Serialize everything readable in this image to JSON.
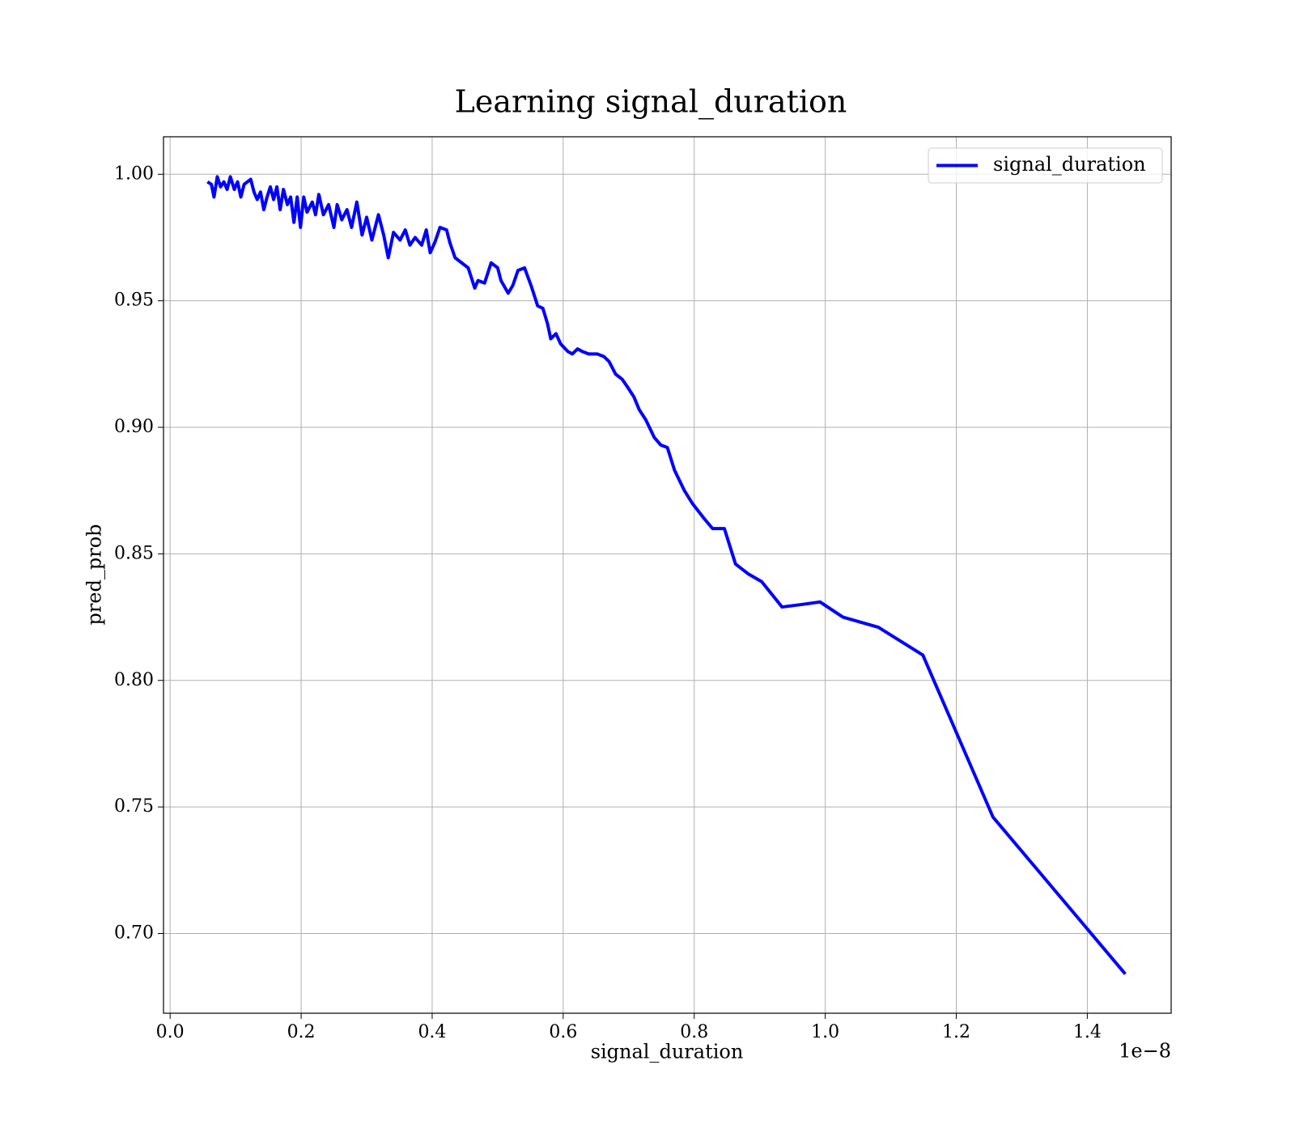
{
  "chart_data": {
    "type": "line",
    "title": "Learning signal_duration",
    "x_label": "signal_duration",
    "y_label": "pred_prob",
    "x_offset_label": "1e−8",
    "x": [
      0.057,
      0.063,
      0.067,
      0.072,
      0.077,
      0.082,
      0.087,
      0.092,
      0.098,
      0.103,
      0.108,
      0.113,
      0.118,
      0.123,
      0.128,
      0.133,
      0.138,
      0.143,
      0.148,
      0.153,
      0.158,
      0.163,
      0.168,
      0.173,
      0.179,
      0.184,
      0.189,
      0.194,
      0.199,
      0.204,
      0.209,
      0.217,
      0.222,
      0.227,
      0.234,
      0.242,
      0.25,
      0.255,
      0.262,
      0.27,
      0.277,
      0.285,
      0.293,
      0.3,
      0.308,
      0.318,
      0.326,
      0.333,
      0.341,
      0.351,
      0.359,
      0.366,
      0.374,
      0.384,
      0.391,
      0.397,
      0.404,
      0.412,
      0.422,
      0.427,
      0.435,
      0.445,
      0.455,
      0.46,
      0.465,
      0.47,
      0.48,
      0.49,
      0.5,
      0.505,
      0.516,
      0.523,
      0.531,
      0.541,
      0.551,
      0.561,
      0.569,
      0.576,
      0.581,
      0.589,
      0.596,
      0.607,
      0.614,
      0.622,
      0.629,
      0.639,
      0.652,
      0.662,
      0.67,
      0.68,
      0.69,
      0.698,
      0.708,
      0.716,
      0.726,
      0.739,
      0.749,
      0.759,
      0.77,
      0.785,
      0.797,
      0.815,
      0.828,
      0.846,
      0.863,
      0.883,
      0.903,
      0.934,
      0.964,
      0.992,
      1.027,
      1.081,
      1.149,
      1.256,
      1.458
    ],
    "series": [
      {
        "name": "signal_duration",
        "color": "#0000ff",
        "values": [
          0.997,
          0.996,
          0.991,
          0.999,
          0.995,
          0.997,
          0.994,
          0.999,
          0.994,
          0.997,
          0.991,
          0.996,
          0.997,
          0.998,
          0.993,
          0.99,
          0.993,
          0.986,
          0.991,
          0.995,
          0.99,
          0.995,
          0.986,
          0.994,
          0.988,
          0.991,
          0.981,
          0.991,
          0.979,
          0.991,
          0.985,
          0.989,
          0.984,
          0.992,
          0.984,
          0.988,
          0.979,
          0.988,
          0.982,
          0.986,
          0.979,
          0.989,
          0.976,
          0.983,
          0.974,
          0.984,
          0.976,
          0.967,
          0.977,
          0.974,
          0.978,
          0.972,
          0.975,
          0.972,
          0.978,
          0.969,
          0.973,
          0.979,
          0.978,
          0.973,
          0.967,
          0.965,
          0.963,
          0.959,
          0.955,
          0.958,
          0.957,
          0.965,
          0.963,
          0.958,
          0.953,
          0.956,
          0.962,
          0.963,
          0.956,
          0.948,
          0.947,
          0.941,
          0.935,
          0.937,
          0.933,
          0.93,
          0.929,
          0.931,
          0.93,
          0.929,
          0.929,
          0.928,
          0.926,
          0.921,
          0.919,
          0.916,
          0.912,
          0.907,
          0.903,
          0.896,
          0.893,
          0.892,
          0.883,
          0.875,
          0.87,
          0.864,
          0.86,
          0.86,
          0.846,
          0.842,
          0.839,
          0.829,
          0.83,
          0.831,
          0.825,
          0.821,
          0.81,
          0.746,
          0.684
        ]
      }
    ],
    "xlim": [
      -0.0101,
      1.528
    ],
    "ylim": [
      0.6685,
      1.0148
    ],
    "xticks": [
      {
        "value": 0,
        "label": "0.0"
      },
      0.2,
      0.4,
      0.6,
      0.8,
      {
        "value": 1,
        "label": "1.0"
      },
      1.2,
      1.4
    ],
    "yticks": [
      {
        "value": 0.7,
        "label": "0.70"
      },
      0.75,
      {
        "value": 0.8,
        "label": "0.80"
      },
      0.85,
      {
        "value": 0.9,
        "label": "0.90"
      },
      0.95,
      {
        "value": 1,
        "label": "1.00"
      }
    ],
    "grid": true,
    "legend": "upper right"
  }
}
